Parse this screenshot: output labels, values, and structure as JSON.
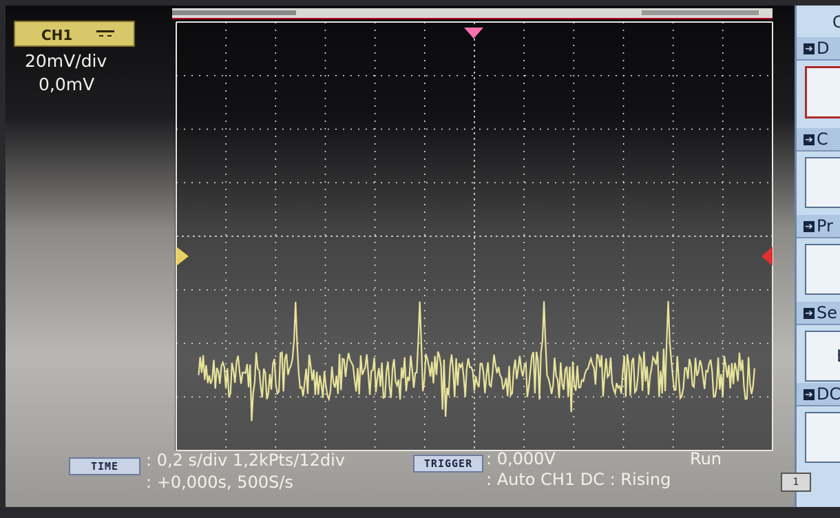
{
  "channel": {
    "name": "CH1",
    "volts_per_div": "20mV/div",
    "offset": "0,0mV",
    "coupling_icon": "dc-coupling-icon",
    "color": "#e8e49a"
  },
  "status": {
    "time_button": "TIME",
    "timebase": ": 0,2 s/div 1,2kPts/12div",
    "position": ": +0,000s, 500S/s",
    "trigger_button": "TRIGGER",
    "trigger_level": ": 0,000V",
    "trigger_mode": ": Auto CH1 DC : Rising",
    "run_state": "Run"
  },
  "side_menu": {
    "top_letter": "C",
    "items": [
      {
        "label": "D",
        "value": ""
      },
      {
        "label": "C",
        "value": ""
      },
      {
        "label": "Pr",
        "value": ""
      },
      {
        "label": "Se",
        "value": "E"
      },
      {
        "label": "DC+",
        "value": ""
      }
    ],
    "page_button": "1"
  },
  "waveform": {
    "grid_divisions_x": 12,
    "grid_divisions_y": 8,
    "spike_positions_div": [
      2.4,
      4.9,
      7.4,
      9.9
    ],
    "spike_height_div": 1.4,
    "noise_band_div": 0.6,
    "baseline_div": -2.6
  }
}
